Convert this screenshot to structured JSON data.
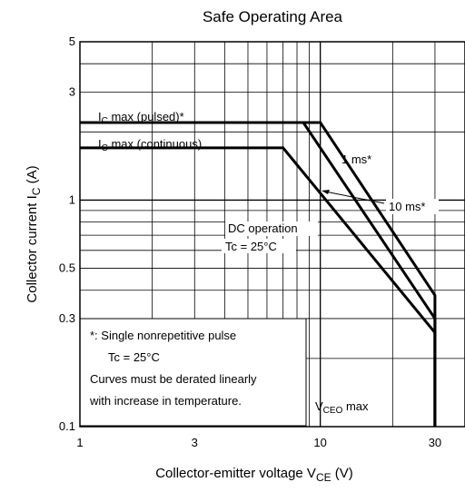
{
  "chart_data": {
    "type": "line",
    "title": "Safe Operating Area",
    "xscale": "log",
    "yscale": "log",
    "xlim": [
      1,
      40
    ],
    "ylim": [
      0.1,
      5
    ],
    "grid": true,
    "xlabel": {
      "text": "Collector-emitter voltage  V",
      "sub": "CE",
      "unit": "   (V)"
    },
    "ylabel": {
      "text": "Collector current  I",
      "sub": "C",
      "unit": "   (A)"
    },
    "x_ticks": [
      {
        "value": 1,
        "label": "1"
      },
      {
        "value": 3,
        "label": "3"
      },
      {
        "value": 10,
        "label": "10"
      },
      {
        "value": 30,
        "label": "30"
      }
    ],
    "y_ticks": [
      {
        "value": 0.1,
        "label": "0.1"
      },
      {
        "value": 0.3,
        "label": "0.3"
      },
      {
        "value": 0.5,
        "label": "0.5"
      },
      {
        "value": 1,
        "label": "1"
      },
      {
        "value": 3,
        "label": "3"
      },
      {
        "value": 5,
        "label": "5"
      }
    ],
    "series": [
      {
        "name": "1 ms*",
        "points": [
          [
            1,
            2.2
          ],
          [
            10,
            2.2
          ],
          [
            30,
            0.38
          ],
          [
            30,
            0.1
          ]
        ]
      },
      {
        "name": "10 ms*",
        "points": [
          [
            1,
            2.2
          ],
          [
            8.5,
            2.2
          ],
          [
            30,
            0.3
          ],
          [
            30,
            0.1
          ]
        ]
      },
      {
        "name": "DC operation",
        "points": [
          [
            1,
            1.7
          ],
          [
            7,
            1.7
          ],
          [
            30,
            0.26
          ],
          [
            30,
            0.1
          ]
        ]
      }
    ],
    "annotations": {
      "ic_max_pulsed": {
        "pre": "I",
        "sub": "C",
        "post": " max (pulsed)*"
      },
      "ic_max_continuous": {
        "pre": "I",
        "sub": "C",
        "post": " max (continuous)"
      },
      "one_ms": "1 ms*",
      "ten_ms": "10 ms*",
      "dc_operation": "DC operation",
      "tc_curve": "Tc = 25°C",
      "vceo_max": {
        "pre": "V",
        "sub": "CEO",
        "post": " max"
      }
    },
    "note_lines": [
      "*: Single nonrepetitive pulse",
      "Tc = 25°C",
      "Curves must be derated linearly",
      "with increase in temperature."
    ]
  }
}
